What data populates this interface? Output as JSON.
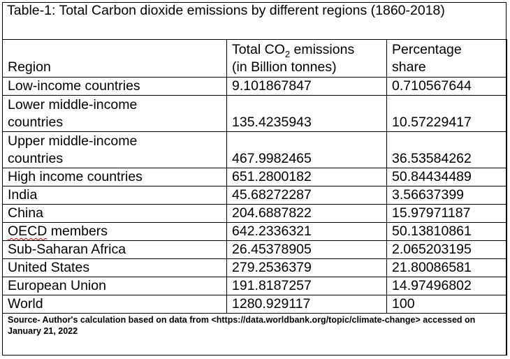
{
  "title": "Table-1: Total Carbon dioxide emissions by different regions (1860-2018)",
  "headers": {
    "region": "Region",
    "emissions_line1_pre": "Total CO",
    "emissions_sub": "2",
    "emissions_line1_post": " emissions",
    "emissions_line2": "(in Billion tonnes)",
    "share_line1": "Percentage",
    "share_line2": "share"
  },
  "rows": [
    {
      "region": "Low-income countries",
      "emissions": "9.101867847",
      "share": "0.710567644"
    },
    {
      "region": "Lower middle-income countries",
      "emissions": "135.4235943",
      "share": "10.57229417"
    },
    {
      "region": "Upper middle-income countries",
      "emissions": "467.9982465",
      "share": "36.53584262"
    },
    {
      "region": "High income countries",
      "emissions": "651.2800182",
      "share": "50.84434489"
    },
    {
      "region": "India",
      "emissions": "45.68272287",
      "share": "3.56637399"
    },
    {
      "region": "China",
      "emissions": "204.6887822",
      "share": "15.97971187"
    },
    {
      "region": "OECD members",
      "emissions": "642.2336321",
      "share": "50.13810861"
    },
    {
      "region": "Sub-Saharan Africa",
      "emissions": "26.45378905",
      "share": "2.065203195"
    },
    {
      "region": "United States",
      "emissions": "279.2536379",
      "share": "21.80086581"
    },
    {
      "region": "European Union",
      "emissions": "191.8187257",
      "share": "14.97496802"
    },
    {
      "region": "World",
      "emissions": "1280.929117",
      "share": "100"
    }
  ],
  "source": "Source- Author's calculation based on data from <https://data.worldbank.org/topic/climate-change> accessed on January 21, 2022"
}
